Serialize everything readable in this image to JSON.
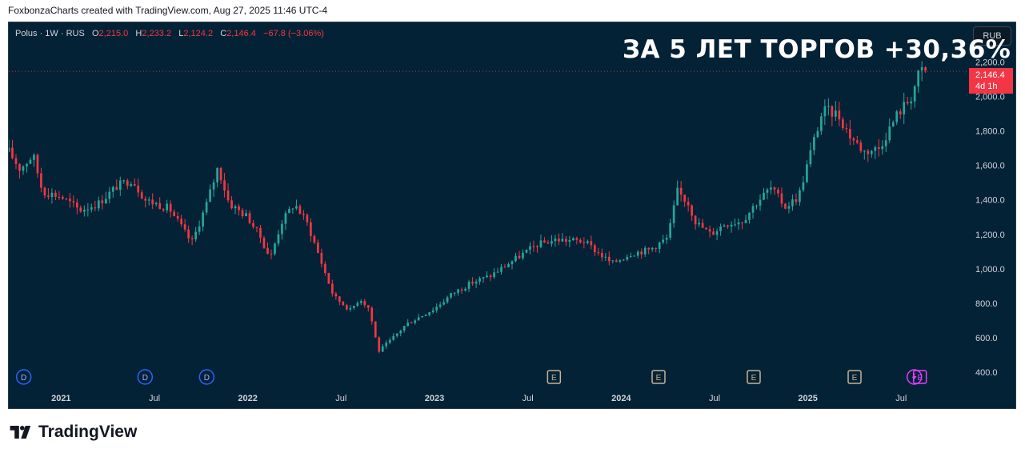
{
  "header": {
    "caption": "FoxbonzaCharts created with TradingView.com, Aug 27, 2025 11:46 UTC-4"
  },
  "legend": {
    "symbol": "Polus · 1W · RUS",
    "open_label": "O",
    "open": "2,215.0",
    "high_label": "H",
    "high": "2,233.2",
    "low_label": "L",
    "low": "2,124.2",
    "close_label": "C",
    "close": "2,146.4",
    "change": "−67.8 (−3.06%)"
  },
  "currency_button": "RUB",
  "headline": "ЗА 5 ЛЕТ ТОРГОВ +30,36%",
  "price_tag": {
    "price": "2,146.4",
    "countdown": "4d 1h"
  },
  "footer": {
    "brand": "TradingView"
  },
  "colors": {
    "background": "#042235",
    "up": "#26a69a",
    "down": "#f23645",
    "dividend_marker": "#2962ff",
    "earnings_marker": "#c7b299",
    "split_marker": "#e040fb"
  },
  "chart_data": {
    "type": "candlestick",
    "symbol": "Polus",
    "interval": "1W",
    "currency": "RUB",
    "y_axis": {
      "range": [
        400,
        2300
      ],
      "ticks": [
        "2,200.0",
        "2,000.0",
        "1,800.0",
        "1,600.0",
        "1,400.0",
        "1,200.0",
        "1,000.0",
        "800.0",
        "600.0",
        "400.0"
      ],
      "tick_values": [
        2200,
        2000,
        1800,
        1600,
        1400,
        1200,
        1000,
        800,
        600,
        400
      ]
    },
    "x_axis": {
      "range": [
        2020.72,
        2025.82
      ],
      "ticks": [
        {
          "label": "2021",
          "t": 2021.0,
          "bold": true
        },
        {
          "label": "Jul",
          "t": 2021.5,
          "bold": false
        },
        {
          "label": "2022",
          "t": 2022.0,
          "bold": true
        },
        {
          "label": "Jul",
          "t": 2022.5,
          "bold": false
        },
        {
          "label": "2023",
          "t": 2023.0,
          "bold": true
        },
        {
          "label": "Jul",
          "t": 2023.5,
          "bold": false
        },
        {
          "label": "2024",
          "t": 2024.0,
          "bold": true
        },
        {
          "label": "Jul",
          "t": 2024.5,
          "bold": false
        },
        {
          "label": "2025",
          "t": 2025.0,
          "bold": true
        },
        {
          "label": "Jul",
          "t": 2025.5,
          "bold": false
        }
      ]
    },
    "last_price": 2146.4,
    "price_path_approx": [
      {
        "t": 2020.72,
        "price": 1680
      },
      {
        "t": 2020.78,
        "price": 1580
      },
      {
        "t": 2020.85,
        "price": 1660
      },
      {
        "t": 2020.9,
        "price": 1450
      },
      {
        "t": 2021.0,
        "price": 1420
      },
      {
        "t": 2021.1,
        "price": 1340
      },
      {
        "t": 2021.2,
        "price": 1380
      },
      {
        "t": 2021.3,
        "price": 1480
      },
      {
        "t": 2021.38,
        "price": 1520
      },
      {
        "t": 2021.45,
        "price": 1400
      },
      {
        "t": 2021.58,
        "price": 1350
      },
      {
        "t": 2021.7,
        "price": 1150
      },
      {
        "t": 2021.78,
        "price": 1380
      },
      {
        "t": 2021.84,
        "price": 1590
      },
      {
        "t": 2021.9,
        "price": 1380
      },
      {
        "t": 2022.0,
        "price": 1300
      },
      {
        "t": 2022.07,
        "price": 1180
      },
      {
        "t": 2022.12,
        "price": 1060
      },
      {
        "t": 2022.18,
        "price": 1270
      },
      {
        "t": 2022.25,
        "price": 1380
      },
      {
        "t": 2022.32,
        "price": 1260
      },
      {
        "t": 2022.4,
        "price": 1020
      },
      {
        "t": 2022.46,
        "price": 840
      },
      {
        "t": 2022.55,
        "price": 760
      },
      {
        "t": 2022.6,
        "price": 830
      },
      {
        "t": 2022.65,
        "price": 770
      },
      {
        "t": 2022.7,
        "price": 520
      },
      {
        "t": 2022.76,
        "price": 580
      },
      {
        "t": 2022.85,
        "price": 680
      },
      {
        "t": 2023.0,
        "price": 770
      },
      {
        "t": 2023.1,
        "price": 860
      },
      {
        "t": 2023.2,
        "price": 920
      },
      {
        "t": 2023.3,
        "price": 960
      },
      {
        "t": 2023.45,
        "price": 1070
      },
      {
        "t": 2023.55,
        "price": 1140
      },
      {
        "t": 2023.65,
        "price": 1170
      },
      {
        "t": 2023.8,
        "price": 1160
      },
      {
        "t": 2023.95,
        "price": 1030
      },
      {
        "t": 2024.05,
        "price": 1090
      },
      {
        "t": 2024.15,
        "price": 1110
      },
      {
        "t": 2024.25,
        "price": 1180
      },
      {
        "t": 2024.3,
        "price": 1450
      },
      {
        "t": 2024.36,
        "price": 1380
      },
      {
        "t": 2024.4,
        "price": 1270
      },
      {
        "t": 2024.48,
        "price": 1200
      },
      {
        "t": 2024.55,
        "price": 1260
      },
      {
        "t": 2024.65,
        "price": 1280
      },
      {
        "t": 2024.72,
        "price": 1380
      },
      {
        "t": 2024.8,
        "price": 1470
      },
      {
        "t": 2024.88,
        "price": 1360
      },
      {
        "t": 2024.95,
        "price": 1420
      },
      {
        "t": 2025.02,
        "price": 1700
      },
      {
        "t": 2025.08,
        "price": 1920
      },
      {
        "t": 2025.16,
        "price": 1900
      },
      {
        "t": 2025.22,
        "price": 1780
      },
      {
        "t": 2025.3,
        "price": 1680
      },
      {
        "t": 2025.38,
        "price": 1700
      },
      {
        "t": 2025.48,
        "price": 1900
      },
      {
        "t": 2025.55,
        "price": 1990
      },
      {
        "t": 2025.6,
        "price": 2150
      },
      {
        "t": 2025.63,
        "price": 2146.4
      }
    ],
    "event_markers": [
      {
        "type": "D",
        "t": 2020.8
      },
      {
        "type": "D",
        "t": 2021.45
      },
      {
        "type": "D",
        "t": 2021.78
      },
      {
        "type": "E",
        "t": 2023.64
      },
      {
        "type": "E",
        "t": 2024.2
      },
      {
        "type": "E",
        "t": 2024.71
      },
      {
        "type": "E",
        "t": 2025.25
      },
      {
        "type": "split",
        "t": 2025.57
      },
      {
        "type": "E",
        "t": 2025.6
      }
    ]
  }
}
